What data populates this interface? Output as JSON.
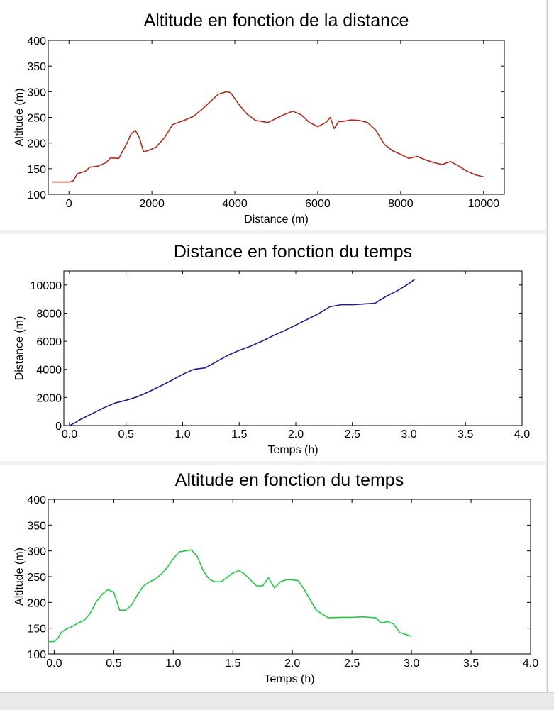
{
  "chart_data": [
    {
      "type": "line",
      "title": "Altitude en fonction de la distance",
      "xlabel": "Distance (m)",
      "ylabel": "Altitude (m)",
      "xlim": [
        -500,
        10500
      ],
      "ylim": [
        100,
        400
      ],
      "xticks": [
        0,
        2000,
        4000,
        6000,
        8000,
        10000
      ],
      "xtick_labels": [
        "0",
        "2000",
        "4000",
        "6000",
        "8000",
        "10000"
      ],
      "yticks": [
        100,
        150,
        200,
        250,
        300,
        350,
        400
      ],
      "ytick_labels": [
        "100",
        "150",
        "200",
        "250",
        "300",
        "350",
        "400"
      ],
      "grid": false,
      "color": "#b22a1a",
      "series": [
        {
          "x": [
            -400,
            0,
            100,
            200,
            400,
            500,
            700,
            900,
            1000,
            1200,
            1300,
            1400,
            1500,
            1600,
            1700,
            1800,
            1900,
            2100,
            2300,
            2500,
            2800,
            3000,
            3200,
            3400,
            3600,
            3800,
            3900,
            4100,
            4300,
            4500,
            4800,
            5000,
            5200,
            5400,
            5600,
            5800,
            6000,
            6200,
            6300,
            6400,
            6500,
            6600,
            6800,
            7000,
            7200,
            7400,
            7600,
            7800,
            8000,
            8200,
            8400,
            8600,
            8800,
            9000,
            9200,
            9400,
            9600,
            9800,
            10000
          ],
          "y": [
            124,
            124,
            126,
            140,
            145,
            153,
            155,
            162,
            171,
            170,
            185,
            200,
            218,
            225,
            210,
            183,
            185,
            192,
            210,
            236,
            245,
            252,
            265,
            280,
            295,
            300,
            298,
            275,
            256,
            244,
            240,
            248,
            256,
            262,
            255,
            240,
            232,
            240,
            250,
            228,
            242,
            242,
            245,
            244,
            240,
            225,
            198,
            185,
            178,
            170,
            174,
            167,
            162,
            158,
            164,
            155,
            145,
            138,
            134
          ]
        }
      ]
    },
    {
      "type": "line",
      "title": "Distance en fonction du temps",
      "xlabel": "Temps (h)",
      "ylabel": "Distance (m)",
      "xlim": [
        -0.05,
        4.0
      ],
      "ylim": [
        0,
        11000
      ],
      "xticks": [
        0.0,
        0.5,
        1.0,
        1.5,
        2.0,
        2.5,
        3.0,
        3.5,
        4.0
      ],
      "xtick_labels": [
        "0.0",
        "0.5",
        "1.0",
        "1.5",
        "2.0",
        "2.5",
        "3.0",
        "3.5",
        "4.0"
      ],
      "yticks": [
        0,
        2000,
        4000,
        6000,
        8000,
        10000
      ],
      "ytick_labels": [
        "0",
        "2000",
        "4000",
        "6000",
        "8000",
        "10000"
      ],
      "grid": false,
      "color": "#1c1c8c",
      "series": [
        {
          "x": [
            0.0,
            0.05,
            0.1,
            0.2,
            0.3,
            0.4,
            0.5,
            0.6,
            0.7,
            0.8,
            0.9,
            1.0,
            1.1,
            1.2,
            1.3,
            1.4,
            1.5,
            1.6,
            1.7,
            1.8,
            1.9,
            2.0,
            2.1,
            2.2,
            2.3,
            2.4,
            2.5,
            2.6,
            2.7,
            2.8,
            2.9,
            3.0,
            3.05
          ],
          "y": [
            0,
            200,
            450,
            850,
            1250,
            1600,
            1800,
            2050,
            2400,
            2800,
            3200,
            3650,
            4000,
            4100,
            4550,
            5000,
            5350,
            5650,
            6000,
            6400,
            6750,
            7150,
            7550,
            7950,
            8450,
            8600,
            8600,
            8650,
            8700,
            9200,
            9600,
            10100,
            10400
          ]
        }
      ]
    },
    {
      "type": "line",
      "title": "Altitude en fonction du temps",
      "xlabel": "Temps (h)",
      "ylabel": "Altitude (m)",
      "xlim": [
        -0.05,
        4.0
      ],
      "ylim": [
        100,
        400
      ],
      "xticks": [
        0.0,
        0.5,
        1.0,
        1.5,
        2.0,
        2.5,
        3.0,
        3.5,
        4.0
      ],
      "xtick_labels": [
        "0.0",
        "0.5",
        "1.0",
        "1.5",
        "2.0",
        "2.5",
        "3.0",
        "3.5",
        "4.0"
      ],
      "yticks": [
        100,
        150,
        200,
        250,
        300,
        350,
        400
      ],
      "ytick_labels": [
        "100",
        "150",
        "200",
        "250",
        "300",
        "350",
        "400"
      ],
      "grid": false,
      "color": "#22c943",
      "series": [
        {
          "x": [
            -0.05,
            0.0,
            0.03,
            0.06,
            0.1,
            0.15,
            0.2,
            0.25,
            0.3,
            0.35,
            0.4,
            0.45,
            0.5,
            0.55,
            0.6,
            0.65,
            0.7,
            0.75,
            0.8,
            0.85,
            0.9,
            0.95,
            1.0,
            1.05,
            1.1,
            1.15,
            1.2,
            1.25,
            1.3,
            1.35,
            1.4,
            1.45,
            1.5,
            1.55,
            1.6,
            1.65,
            1.7,
            1.75,
            1.8,
            1.85,
            1.9,
            1.95,
            2.0,
            2.05,
            2.1,
            2.2,
            2.3,
            2.4,
            2.5,
            2.6,
            2.7,
            2.75,
            2.8,
            2.85,
            2.9,
            2.95,
            3.0
          ],
          "y": [
            124,
            124,
            130,
            142,
            148,
            153,
            160,
            165,
            178,
            200,
            215,
            225,
            220,
            185,
            185,
            195,
            215,
            232,
            240,
            245,
            255,
            268,
            285,
            298,
            300,
            302,
            290,
            262,
            245,
            240,
            240,
            248,
            257,
            262,
            255,
            243,
            232,
            232,
            248,
            228,
            240,
            244,
            244,
            242,
            225,
            185,
            170,
            171,
            171,
            172,
            170,
            160,
            163,
            158,
            142,
            138,
            134
          ]
        }
      ]
    }
  ]
}
